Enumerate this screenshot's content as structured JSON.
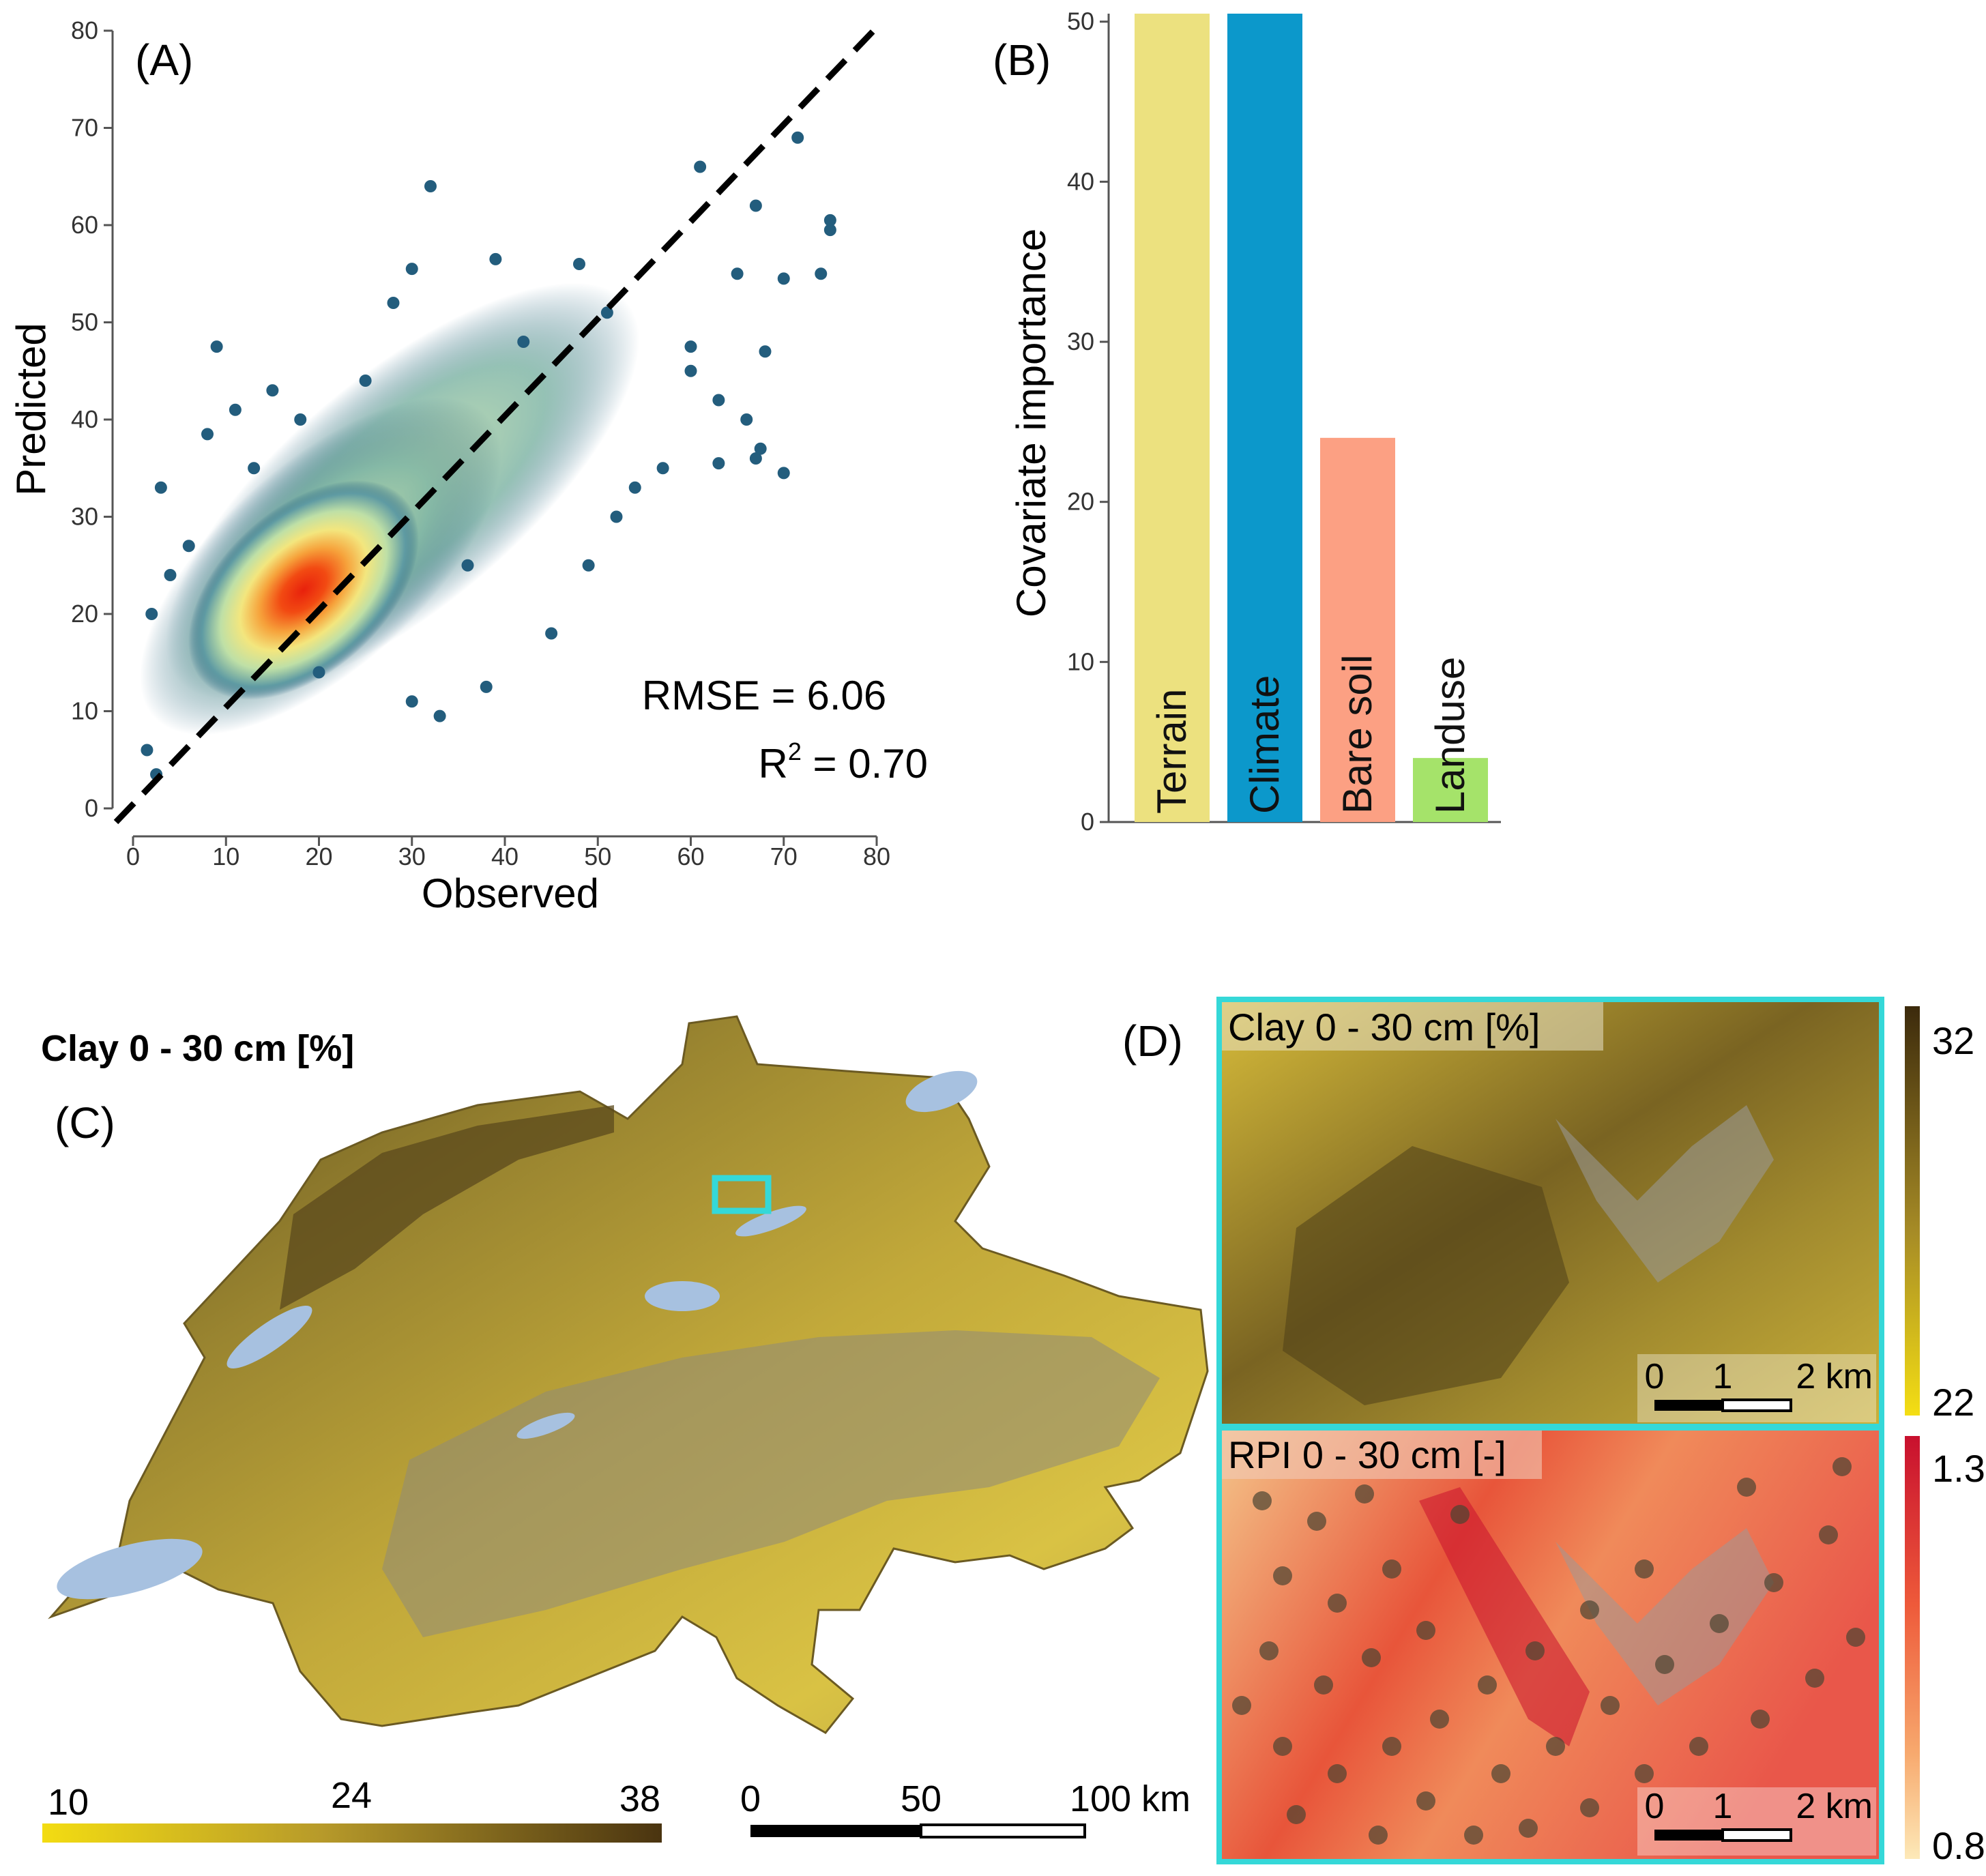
{
  "colors": {
    "terrain": "#ece17f",
    "climate": "#0c98cb",
    "bare_soil": "#fca083",
    "landuse": "#a5e36a",
    "scatter_low": "#235d7d",
    "scatter_high": "#e8210c",
    "inset_border": "#35d8d8",
    "lakes": "#a7c1e0"
  },
  "panel_a": {
    "label": "(A)",
    "rmse_text": "RMSE = 6.06",
    "r2_prefix": "R",
    "r2_sup": "2",
    "r2_suffix": " = 0.70"
  },
  "panel_b": {
    "label": "(B)"
  },
  "panel_c": {
    "label": "(C)",
    "map_title": "Clay 0 - 30 cm [%]",
    "legend_labels": [
      "10",
      "24",
      "38"
    ],
    "scalebar_labels": [
      "0",
      "50",
      "100 km"
    ]
  },
  "panel_d": {
    "label": "(D)",
    "top_title": "Clay 0 - 30 cm [%]",
    "top_legend": {
      "max": "32",
      "min": "22"
    },
    "bottom_title": "RPI 0 - 30 cm [-]",
    "bottom_legend": {
      "max": "1.3",
      "min": "0.8"
    },
    "scalebar_labels": [
      "0",
      "1",
      "2 km"
    ]
  },
  "chart_data": [
    {
      "type": "scatter",
      "title": "",
      "xlabel": "Observed",
      "ylabel": "Predicted",
      "xlim": [
        0,
        80
      ],
      "ylim": [
        0,
        80
      ],
      "x_ticks": [
        "0",
        "10",
        "20",
        "30",
        "40",
        "50",
        "60",
        "70",
        "80"
      ],
      "y_ticks": [
        "0",
        "10",
        "20",
        "30",
        "40",
        "50",
        "60",
        "70",
        "80"
      ],
      "reference_line": "1:1 dashed",
      "rmse": 6.06,
      "r2": 0.7,
      "outliers": [
        [
          9,
          47.5
        ],
        [
          32,
          64
        ],
        [
          30,
          55.5
        ],
        [
          39,
          56.5
        ],
        [
          48,
          56
        ],
        [
          61,
          66
        ],
        [
          67,
          62
        ],
        [
          71.5,
          69
        ],
        [
          75,
          60.5
        ],
        [
          75,
          59.5
        ],
        [
          74,
          55
        ],
        [
          70,
          54.5
        ],
        [
          65,
          55
        ],
        [
          60,
          47.5
        ],
        [
          68,
          47
        ],
        [
          60,
          45
        ],
        [
          66,
          40
        ],
        [
          67,
          36
        ],
        [
          70,
          34.5
        ],
        [
          67.5,
          37
        ],
        [
          54,
          33
        ],
        [
          52,
          30
        ],
        [
          49,
          25
        ],
        [
          57,
          35
        ],
        [
          63,
          35.5
        ],
        [
          33,
          9.5
        ],
        [
          38,
          12.5
        ],
        [
          8,
          38.5
        ],
        [
          3,
          33
        ],
        [
          11,
          41
        ],
        [
          4,
          24
        ],
        [
          2,
          20
        ],
        [
          1.5,
          6
        ],
        [
          2.5,
          3.5
        ],
        [
          15,
          43
        ],
        [
          25,
          44
        ],
        [
          20,
          14
        ],
        [
          30,
          11
        ],
        [
          45,
          18
        ],
        [
          63,
          42
        ],
        [
          13,
          35
        ],
        [
          6,
          27
        ],
        [
          42,
          48
        ],
        [
          51,
          51
        ],
        [
          36,
          25
        ],
        [
          28,
          52
        ],
        [
          18,
          40
        ]
      ]
    },
    {
      "type": "bar",
      "title": "",
      "xlabel": "",
      "ylabel": "Covariate importance",
      "categories": [
        "Terrain",
        "Climate",
        "Bare soil",
        "Landuse"
      ],
      "values": [
        50.5,
        50.5,
        24,
        4
      ],
      "ylim": [
        0,
        50.5
      ],
      "y_ticks": [
        "0",
        "10",
        "20",
        "30",
        "40",
        "50"
      ]
    }
  ]
}
